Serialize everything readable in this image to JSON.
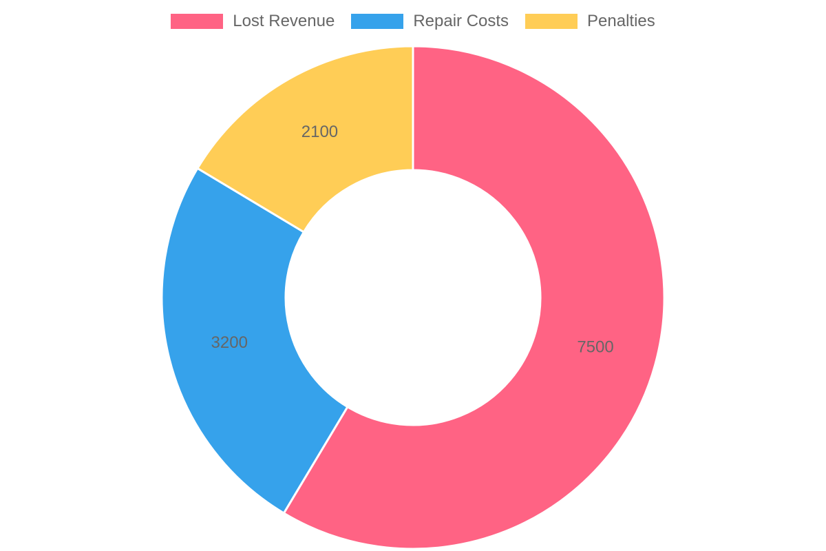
{
  "chart_data": {
    "type": "pie",
    "categories": [
      "Lost Revenue",
      "Repair Costs",
      "Penalties"
    ],
    "values": [
      7500,
      3200,
      2100
    ],
    "colors": [
      "#ff6384",
      "#36a2eb",
      "#ffcd56"
    ],
    "legend_position": "top",
    "donut": true
  }
}
